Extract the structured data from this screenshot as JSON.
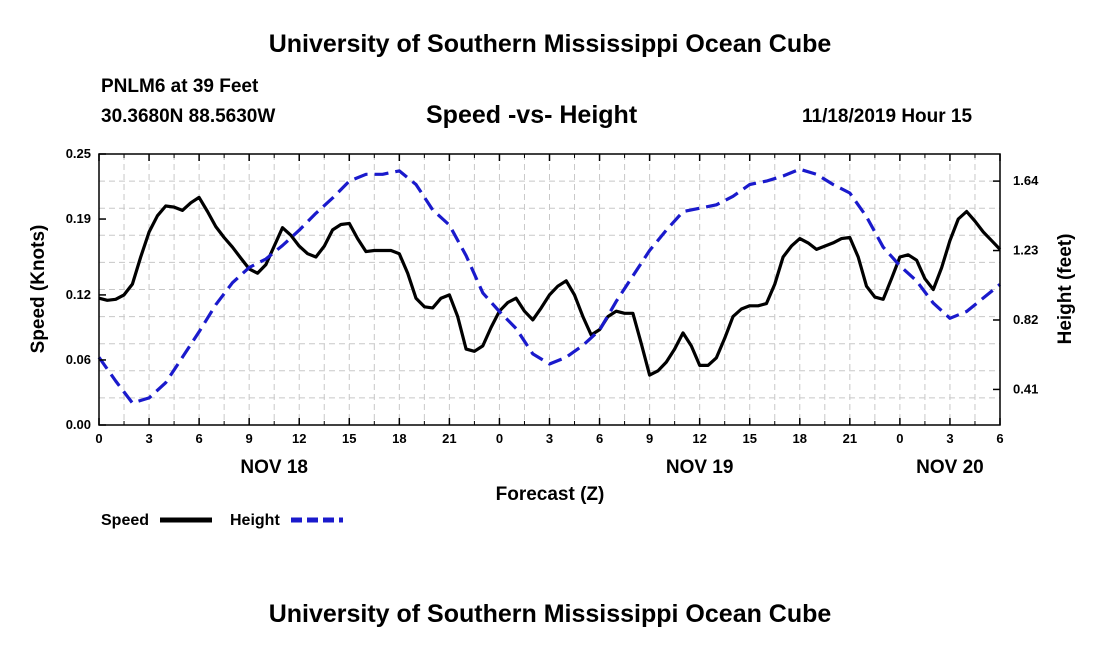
{
  "header": {
    "top_title": "University of Southern Mississippi Ocean Cube",
    "station": "PNLM6 at 39 Feet",
    "coords": "30.3680N 88.5630W",
    "chart_title": "Speed -vs- Height",
    "datetime": "11/18/2019 Hour 15"
  },
  "footer": {
    "bottom_title": "University of Southern Mississippi Ocean Cube"
  },
  "colors": {
    "speed": "#000000",
    "height": "#1a1acc",
    "grid": "#c8c8c8"
  },
  "chart_data": {
    "type": "line",
    "title": "Speed -vs- Height",
    "xlabel": "Forecast (Z)",
    "ylabel": "Speed (Knots)",
    "y2label": "Height (feet)",
    "xlim": [
      0,
      54
    ],
    "ylim": [
      0,
      0.25
    ],
    "y2lim": [
      0.2,
      1.8
    ],
    "x_ticks": [
      {
        "x": 0,
        "label": "0"
      },
      {
        "x": 3,
        "label": "3"
      },
      {
        "x": 6,
        "label": "6"
      },
      {
        "x": 9,
        "label": "9"
      },
      {
        "x": 12,
        "label": "12"
      },
      {
        "x": 15,
        "label": "15"
      },
      {
        "x": 18,
        "label": "18"
      },
      {
        "x": 21,
        "label": "21"
      },
      {
        "x": 24,
        "label": "0"
      },
      {
        "x": 27,
        "label": "3"
      },
      {
        "x": 30,
        "label": "6"
      },
      {
        "x": 33,
        "label": "9"
      },
      {
        "x": 36,
        "label": "12"
      },
      {
        "x": 39,
        "label": "15"
      },
      {
        "x": 42,
        "label": "18"
      },
      {
        "x": 45,
        "label": "21"
      },
      {
        "x": 48,
        "label": "0"
      },
      {
        "x": 51,
        "label": "3"
      },
      {
        "x": 54,
        "label": "6"
      }
    ],
    "day_labels": [
      {
        "x": 10.5,
        "label": "NOV 18"
      },
      {
        "x": 36,
        "label": "NOV 19"
      },
      {
        "x": 51,
        "label": "NOV 20"
      }
    ],
    "y_ticks": [
      {
        "value": 0.0,
        "label": "0.00"
      },
      {
        "value": 0.06,
        "label": "0.06"
      },
      {
        "value": 0.12,
        "label": "0.12"
      },
      {
        "value": 0.19,
        "label": "0.19"
      },
      {
        "value": 0.25,
        "label": "0.25"
      }
    ],
    "y2_ticks": [
      {
        "value": 0.41,
        "label": "0.41"
      },
      {
        "value": 0.82,
        "label": "0.82"
      },
      {
        "value": 1.23,
        "label": "1.23"
      },
      {
        "value": 1.64,
        "label": "1.64"
      }
    ],
    "x_grid": [
      0,
      1.5,
      3,
      4.5,
      6,
      7.5,
      9,
      10.5,
      12,
      13.5,
      15,
      16.5,
      18,
      19.5,
      21,
      22.5,
      24,
      25.5,
      27,
      28.5,
      30,
      31.5,
      33,
      34.5,
      36,
      37.5,
      39,
      40.5,
      42,
      43.5,
      45,
      46.5,
      48,
      49.5,
      51,
      52.5,
      54
    ],
    "y_grid": [
      0.025,
      0.05,
      0.075,
      0.1,
      0.125,
      0.15,
      0.175,
      0.2,
      0.225
    ],
    "legend": [
      {
        "name": "Speed",
        "style": "solid"
      },
      {
        "name": "Height",
        "style": "dashed"
      }
    ],
    "series": [
      {
        "name": "Speed",
        "axis": "left",
        "x": [
          0,
          0.5,
          1,
          1.5,
          2,
          2.5,
          3,
          3.5,
          4,
          4.5,
          5,
          5.5,
          6,
          6.5,
          7,
          7.5,
          8,
          8.5,
          9,
          9.5,
          10,
          10.5,
          11,
          11.5,
          12,
          12.5,
          13,
          13.5,
          14,
          14.5,
          15,
          15.5,
          16,
          16.5,
          17,
          17.5,
          18,
          18.5,
          19,
          19.5,
          20,
          20.5,
          21,
          21.5,
          22,
          22.5,
          23,
          23.5,
          24,
          24.5,
          25,
          25.5,
          26,
          26.5,
          27,
          27.5,
          28,
          28.5,
          29,
          29.5,
          30,
          30.5,
          31,
          31.5,
          32,
          32.5,
          33,
          33.5,
          34,
          34.5,
          35,
          35.5,
          36,
          36.5,
          37,
          37.5,
          38,
          38.5,
          39,
          39.5,
          40,
          40.5,
          41,
          41.5,
          42,
          42.5,
          43,
          43.5,
          44,
          44.5,
          45,
          45.5,
          46,
          46.5,
          47,
          47.5,
          48,
          48.5,
          49,
          49.5,
          50,
          50.5,
          51,
          51.5,
          52,
          52.5,
          53,
          53.5,
          54
        ],
        "values": [
          0.117,
          0.115,
          0.116,
          0.12,
          0.13,
          0.155,
          0.178,
          0.193,
          0.202,
          0.201,
          0.198,
          0.205,
          0.21,
          0.197,
          0.183,
          0.173,
          0.164,
          0.154,
          0.144,
          0.14,
          0.148,
          0.165,
          0.182,
          0.175,
          0.165,
          0.158,
          0.155,
          0.165,
          0.18,
          0.185,
          0.186,
          0.172,
          0.16,
          0.161,
          0.161,
          0.161,
          0.158,
          0.14,
          0.117,
          0.109,
          0.108,
          0.117,
          0.12,
          0.1,
          0.07,
          0.068,
          0.073,
          0.09,
          0.105,
          0.113,
          0.117,
          0.105,
          0.097,
          0.108,
          0.12,
          0.128,
          0.133,
          0.12,
          0.1,
          0.083,
          0.088,
          0.1,
          0.105,
          0.103,
          0.103,
          0.075,
          0.046,
          0.05,
          0.058,
          0.07,
          0.085,
          0.073,
          0.055,
          0.055,
          0.062,
          0.08,
          0.1,
          0.107,
          0.11,
          0.11,
          0.112,
          0.13,
          0.155,
          0.165,
          0.172,
          0.168,
          0.162,
          0.165,
          0.168,
          0.172,
          0.173,
          0.155,
          0.128,
          0.118,
          0.116,
          0.135,
          0.155,
          0.157,
          0.152,
          0.135,
          0.125,
          0.145,
          0.17,
          0.19,
          0.197,
          0.188,
          0.178,
          0.17,
          0.162
        ]
      },
      {
        "name": "Height",
        "axis": "right",
        "x": [
          0,
          1,
          2,
          3,
          4,
          5,
          6,
          7,
          8,
          9,
          10,
          11,
          12,
          13,
          14,
          15,
          16,
          17,
          18,
          19,
          20,
          21,
          22,
          23,
          24,
          25,
          26,
          27,
          28,
          29,
          30,
          31,
          32,
          33,
          34,
          35,
          36,
          37,
          38,
          39,
          40,
          41,
          42,
          43,
          44,
          45,
          46,
          47,
          48,
          49,
          50,
          51,
          52,
          53,
          54
        ],
        "values": [
          0.6,
          0.46,
          0.33,
          0.36,
          0.45,
          0.6,
          0.75,
          0.91,
          1.04,
          1.13,
          1.18,
          1.26,
          1.35,
          1.45,
          1.54,
          1.64,
          1.68,
          1.68,
          1.7,
          1.62,
          1.47,
          1.38,
          1.2,
          0.98,
          0.87,
          0.77,
          0.62,
          0.56,
          0.6,
          0.67,
          0.76,
          0.93,
          1.08,
          1.23,
          1.35,
          1.46,
          1.48,
          1.5,
          1.55,
          1.62,
          1.64,
          1.67,
          1.71,
          1.68,
          1.62,
          1.57,
          1.43,
          1.25,
          1.14,
          1.05,
          0.92,
          0.83,
          0.87,
          0.95,
          1.03
        ]
      }
    ]
  }
}
